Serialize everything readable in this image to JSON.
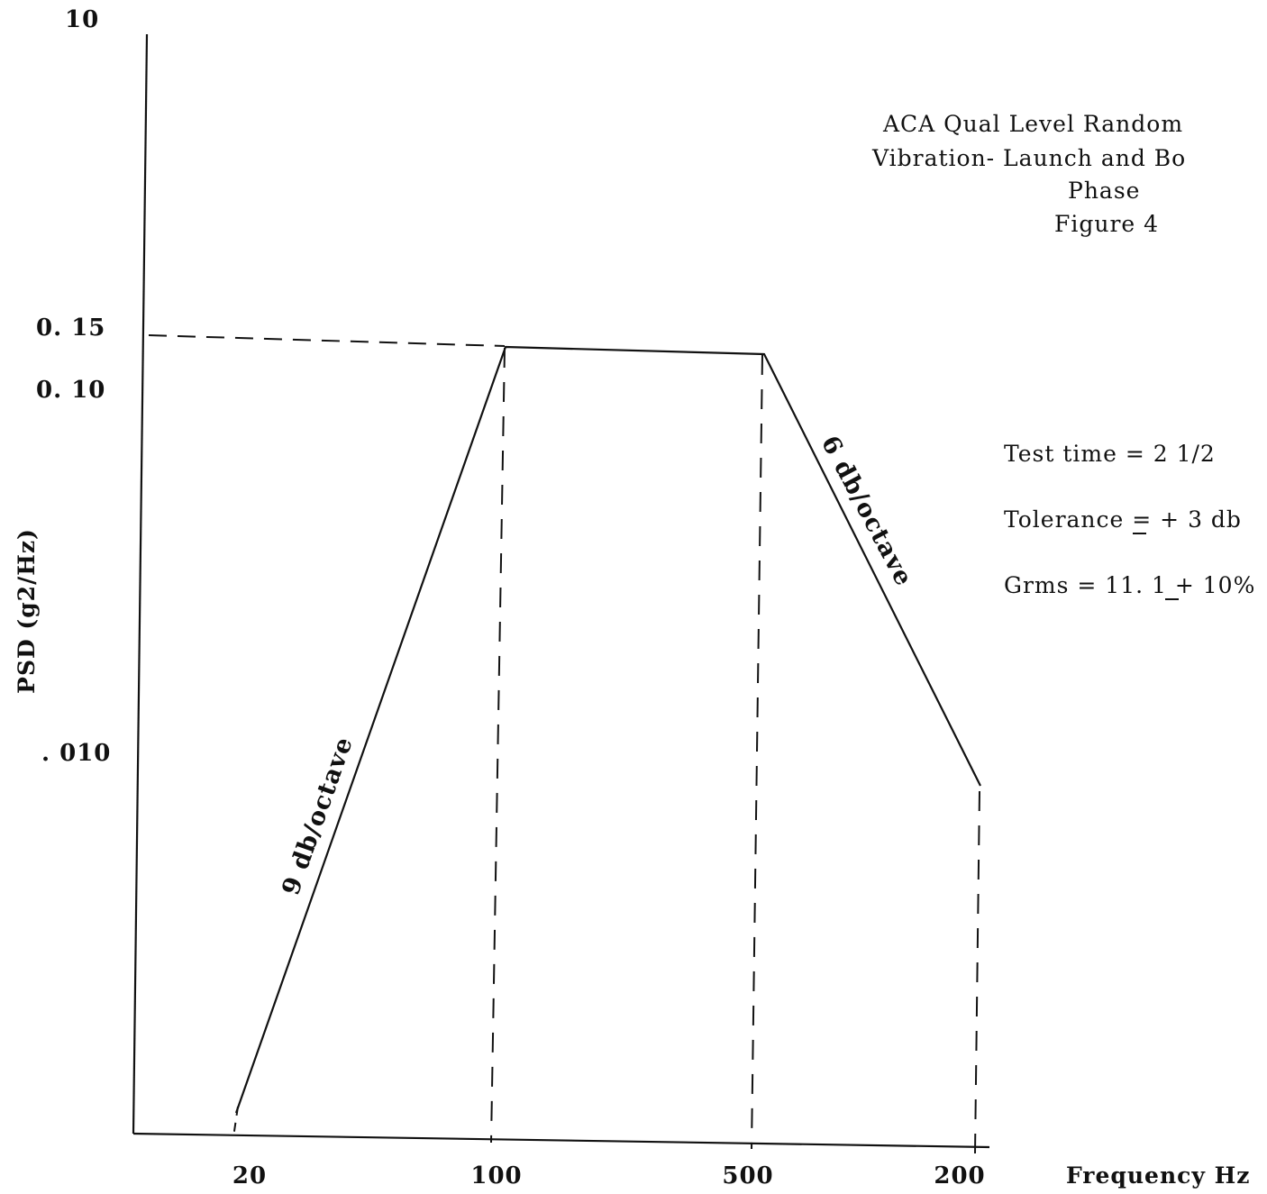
{
  "chart_data": {
    "type": "line",
    "title_lines": [
      "ACA Qual Level Random",
      "Vibration- Launch and Bo",
      "Phase",
      "Figure 4"
    ],
    "xlabel": "Frequency Hz",
    "ylabel": "PSD (g2/Hz)",
    "x_tick_labels": [
      "20",
      "100",
      "500",
      "200"
    ],
    "y_tick_labels": [
      "10",
      "0. 15",
      "0. 10",
      ". 010"
    ],
    "y_scale": "log",
    "series": [
      {
        "x": [
          "20",
          "100",
          "500",
          "200"
        ],
        "y": [
          0.0005,
          0.15,
          0.15,
          0.01
        ]
      }
    ],
    "reference_level": {
      "y_label": "0. 15"
    },
    "annotations": {
      "rise_slope": "9 db/octave",
      "fall_slope": "6 db/octave"
    },
    "notes": {
      "test_time": "Test time = 2 1/2",
      "tolerance_prefix": "Tolerance = ",
      "tolerance_pm": "+",
      "tolerance_value": " 3 db",
      "grms_prefix": "Grms = 11. 1 ",
      "grms_pm": "+",
      "grms_value": " 10%"
    },
    "grid": false,
    "colors": {
      "ink": "#111111",
      "background": "#ffffff"
    }
  }
}
